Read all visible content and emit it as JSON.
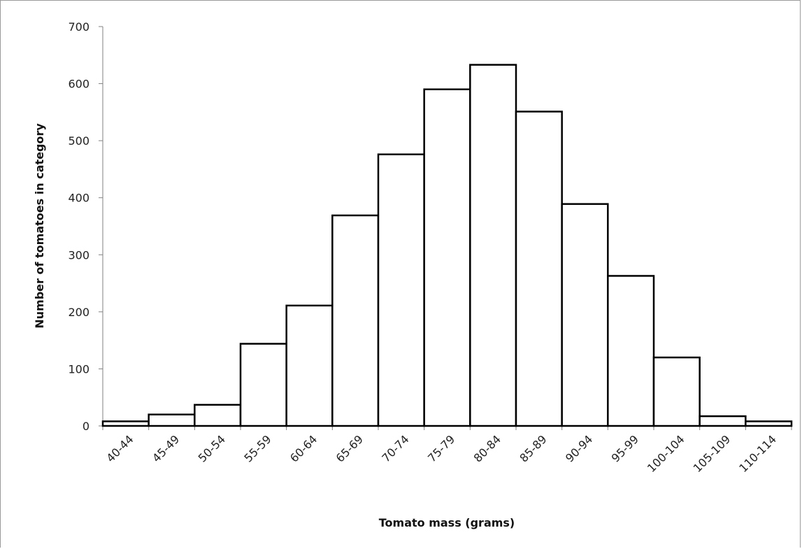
{
  "chart_data": {
    "type": "bar",
    "title": "",
    "xlabel": "Tomato mass (grams)",
    "ylabel": "Number of tomatoes in category",
    "categories": [
      "40-44",
      "45-49",
      "50-54",
      "55-59",
      "60-64",
      "65-69",
      "70-74",
      "75-79",
      "80-84",
      "85-89",
      "90-94",
      "95-99",
      "100-104",
      "105-109",
      "110-114"
    ],
    "values": [
      8,
      20,
      37,
      144,
      211,
      369,
      476,
      590,
      633,
      551,
      389,
      263,
      120,
      17,
      8
    ],
    "ylim": [
      0,
      700
    ],
    "yticks": [
      0,
      100,
      200,
      300,
      400,
      500,
      600,
      700
    ],
    "grid": false,
    "legend": "none",
    "colors": {
      "bar_fill": "#ffffff",
      "bar_stroke": "#000000",
      "axis": "#808080"
    }
  }
}
